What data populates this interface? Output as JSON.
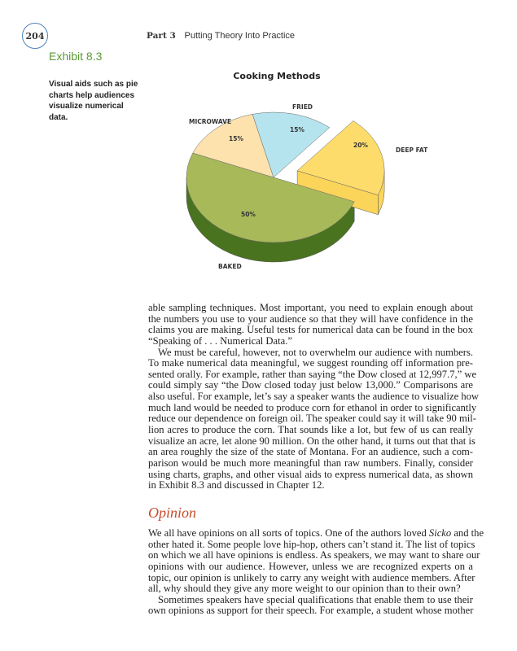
{
  "header": {
    "page_number": "204",
    "part": "Part 3",
    "part_title": "Putting Theory Into Practice"
  },
  "exhibit": {
    "label": "Exhibit 8.3",
    "caption_lines": [
      "Visual aids such as pie",
      "charts help audiences",
      "visualize numerical",
      "data."
    ]
  },
  "chart_data": {
    "type": "pie",
    "style": "3d-exploded",
    "title": "Cooking Methods",
    "slices": [
      {
        "label": "BAKED",
        "value": 50,
        "value_label": "50%",
        "color": "#a8b95a",
        "side_color": "#4a7320",
        "exploded": false
      },
      {
        "label": "MICROWAVE",
        "value": 15,
        "value_label": "15%",
        "color": "#fde2ae",
        "side_color": "#e9c98f",
        "exploded": false
      },
      {
        "label": "FRIED",
        "value": 15,
        "value_label": "15%",
        "color": "#b5e4ee",
        "side_color": "#8fc6d2",
        "exploded": false
      },
      {
        "label": "DEEP FAT",
        "value": 20,
        "value_label": "20%",
        "color": "#fddc6c",
        "side_color": "#fbd45a",
        "exploded": true
      }
    ]
  },
  "body": {
    "paragraph1_lines": [
      "able sampling techniques. Most important, you need to explain enough about",
      "the numbers you use to your audience so that they will have confidence in the",
      "claims you are making. Useful tests for numerical data can be found in the box",
      "“Speaking of . . . Numerical Data.”"
    ],
    "paragraph2_lines": [
      "We must be careful, however, not to overwhelm our audience with numbers.",
      "To make numerical data meaningful, we suggest rounding off information pre-",
      "sented orally. For example, rather than saying “the Dow closed at 12,997.7,” we",
      "could simply say “the Dow closed today just below 13,000.” Comparisons are",
      "also useful.  For example, let’s say a speaker wants the audience to visualize how",
      "much land would be needed to produce corn for ethanol in order to significantly",
      "reduce our dependence on foreign oil.  The speaker could say it will take 90 mil-",
      "lion acres to produce the corn. That sounds like a lot, but few of us can really",
      "visualize an acre, let alone 90 million. On the other hand, it turns out that that is",
      "an area roughly the size of the state of Montana.  For an audience, such a com-",
      "parison would be much more meaningful than raw numbers. Finally, consider",
      "using charts, graphs, and other visual aids to express numerical data, as shown",
      "in Exhibit 8.3 and discussed in Chapter 12."
    ],
    "section_heading": "Opinion",
    "paragraph3_lines": [
      "We all have opinions on all sorts of topics. One of the authors loved Sicko and the",
      "other hated it. Some people love hip-hop, others can’t stand it. The list of topics",
      "on which we all have opinions is endless. As speakers, we may want to share our",
      "opinions with our audience. However, unless we are recognized experts on a",
      "topic, our opinion is unlikely to carry any weight with audience members. After",
      "all, why should they give any more weight to our opinion than to their own?"
    ],
    "paragraph4_lines": [
      "Sometimes speakers have special qualifications that enable them to use their",
      "own opinions as support for their speech. For example, a student whose mother"
    ]
  }
}
